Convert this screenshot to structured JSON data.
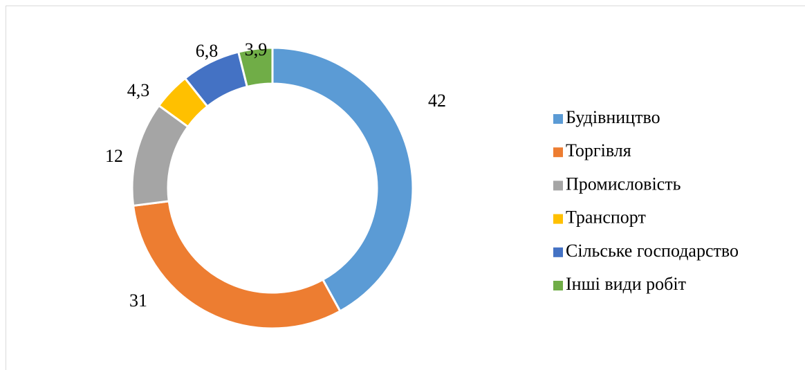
{
  "chart_data": {
    "type": "donut",
    "categories": [
      "Будівництво",
      "Торгівля",
      "Промисловість",
      "Транспорт",
      "Сільське господарство",
      "Інші види робіт"
    ],
    "values": [
      42,
      31,
      12,
      4.3,
      6.8,
      3.9
    ],
    "value_labels": [
      "42",
      "31",
      "12",
      "4,3",
      "6,8",
      "3,9"
    ],
    "colors": [
      "#5b9bd5",
      "#ed7d31",
      "#a5a5a5",
      "#ffc000",
      "#4472c4",
      "#70ad47"
    ],
    "legend": "right"
  }
}
